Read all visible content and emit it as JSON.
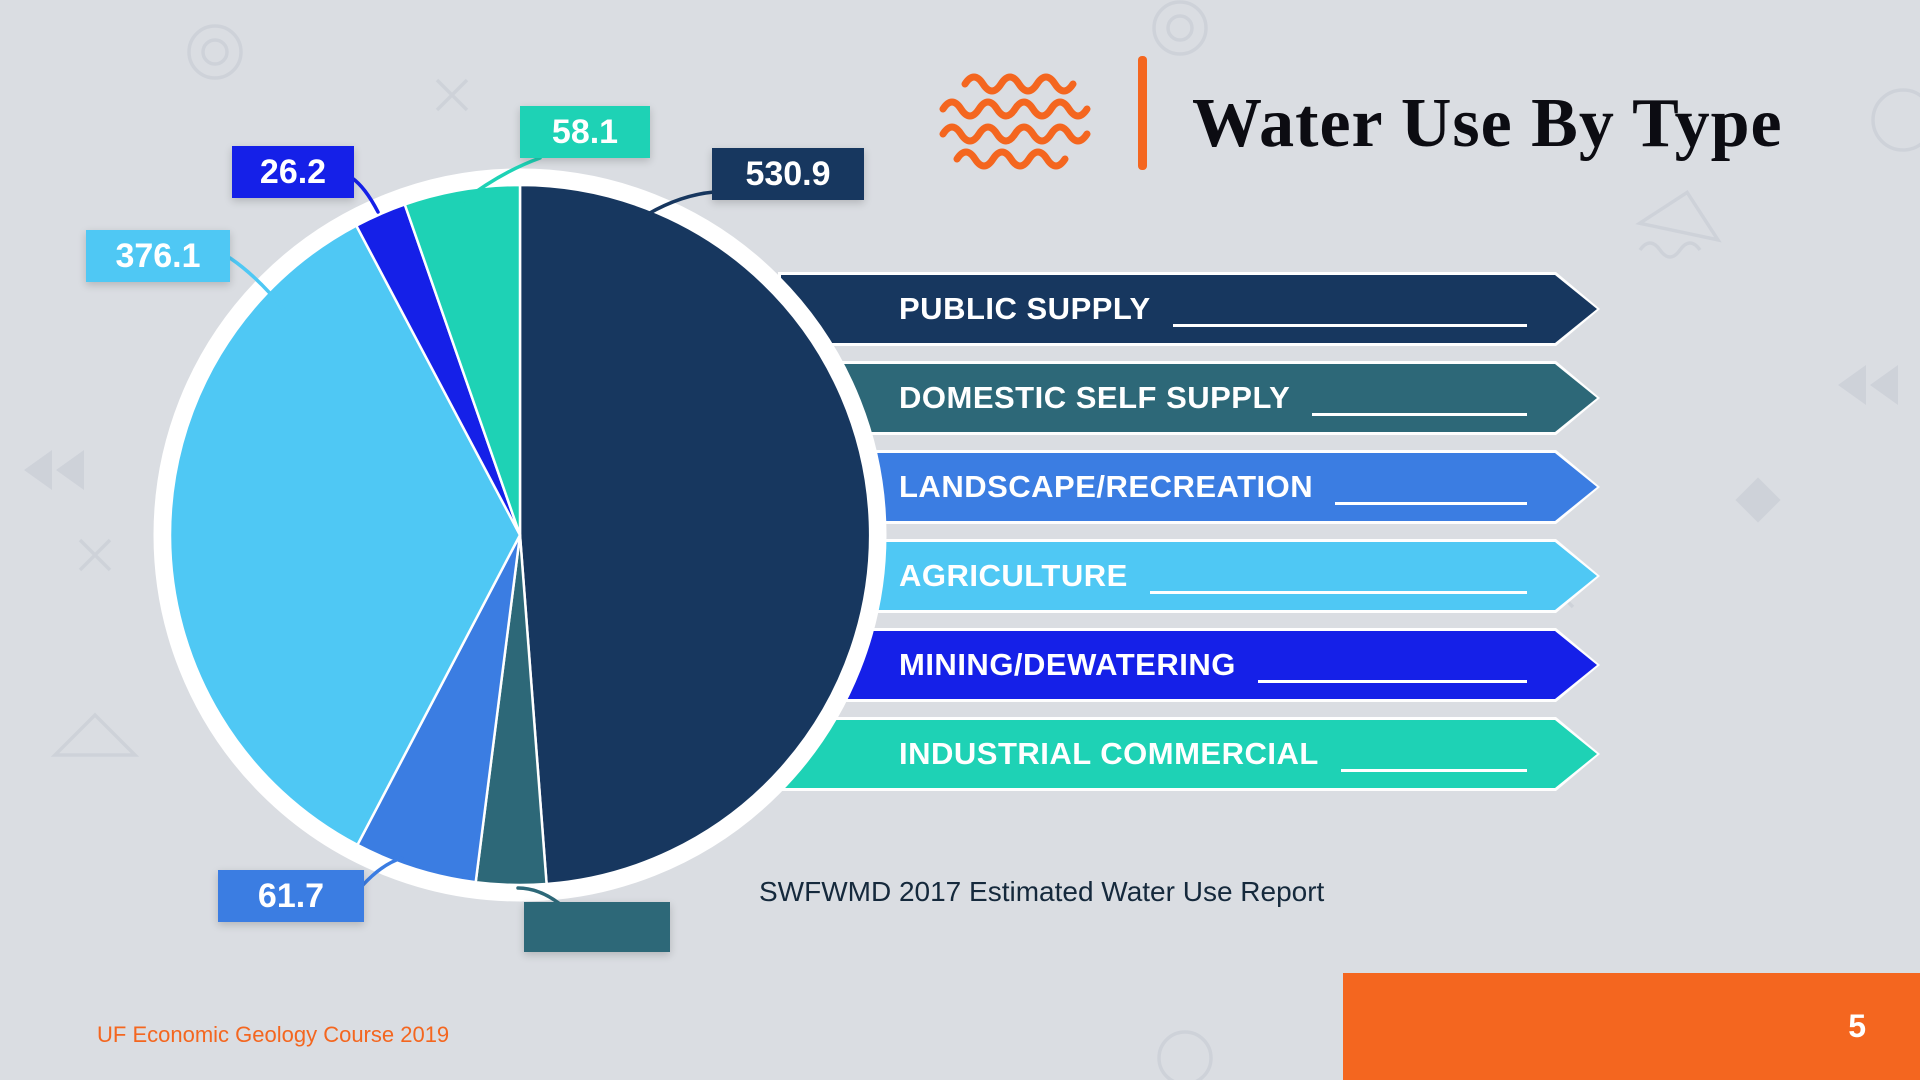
{
  "slide": {
    "title": "Water Use By Type",
    "source_note": "SWFWMD 2017 Estimated Water Use Report",
    "footer_left": "UF Economic Geology Course 2019",
    "page_number": "5"
  },
  "colors": {
    "background": "#dadde2",
    "accent_orange": "#f4661f",
    "title_text": "#0c0c12",
    "note_text": "#15293c",
    "label_text": "#ffffff"
  },
  "chart_data": {
    "type": "pie",
    "title": "Water Use By Type",
    "source": "SWFWMD 2017 Estimated Water Use Report",
    "direction": "clockwise",
    "start_angle_deg": 0,
    "legend_position": "right",
    "series": [
      {
        "name": "PUBLIC SUPPLY",
        "value": 530.9,
        "label": "530.9",
        "color": "#17375f",
        "label_visible": true
      },
      {
        "name": "DOMESTIC SELF SUPPLY",
        "value": 35.2,
        "label": "",
        "color": "#2d6878",
        "label_visible": false,
        "value_estimated": true
      },
      {
        "name": "LANDSCAPE/RECREATION",
        "value": 61.7,
        "label": "61.7",
        "color": "#3b7de2",
        "label_visible": true
      },
      {
        "name": "AGRICULTURE",
        "value": 376.1,
        "label": "376.1",
        "color": "#4fc8f4",
        "label_visible": true
      },
      {
        "name": "MINING/DEWATERING",
        "value": 26.2,
        "label": "26.2",
        "color": "#1520e8",
        "label_visible": true
      },
      {
        "name": "INDUSTRIAL COMMERCIAL",
        "value": 58.1,
        "label": "58.1",
        "color": "#1ed2b5",
        "label_visible": true
      }
    ]
  }
}
